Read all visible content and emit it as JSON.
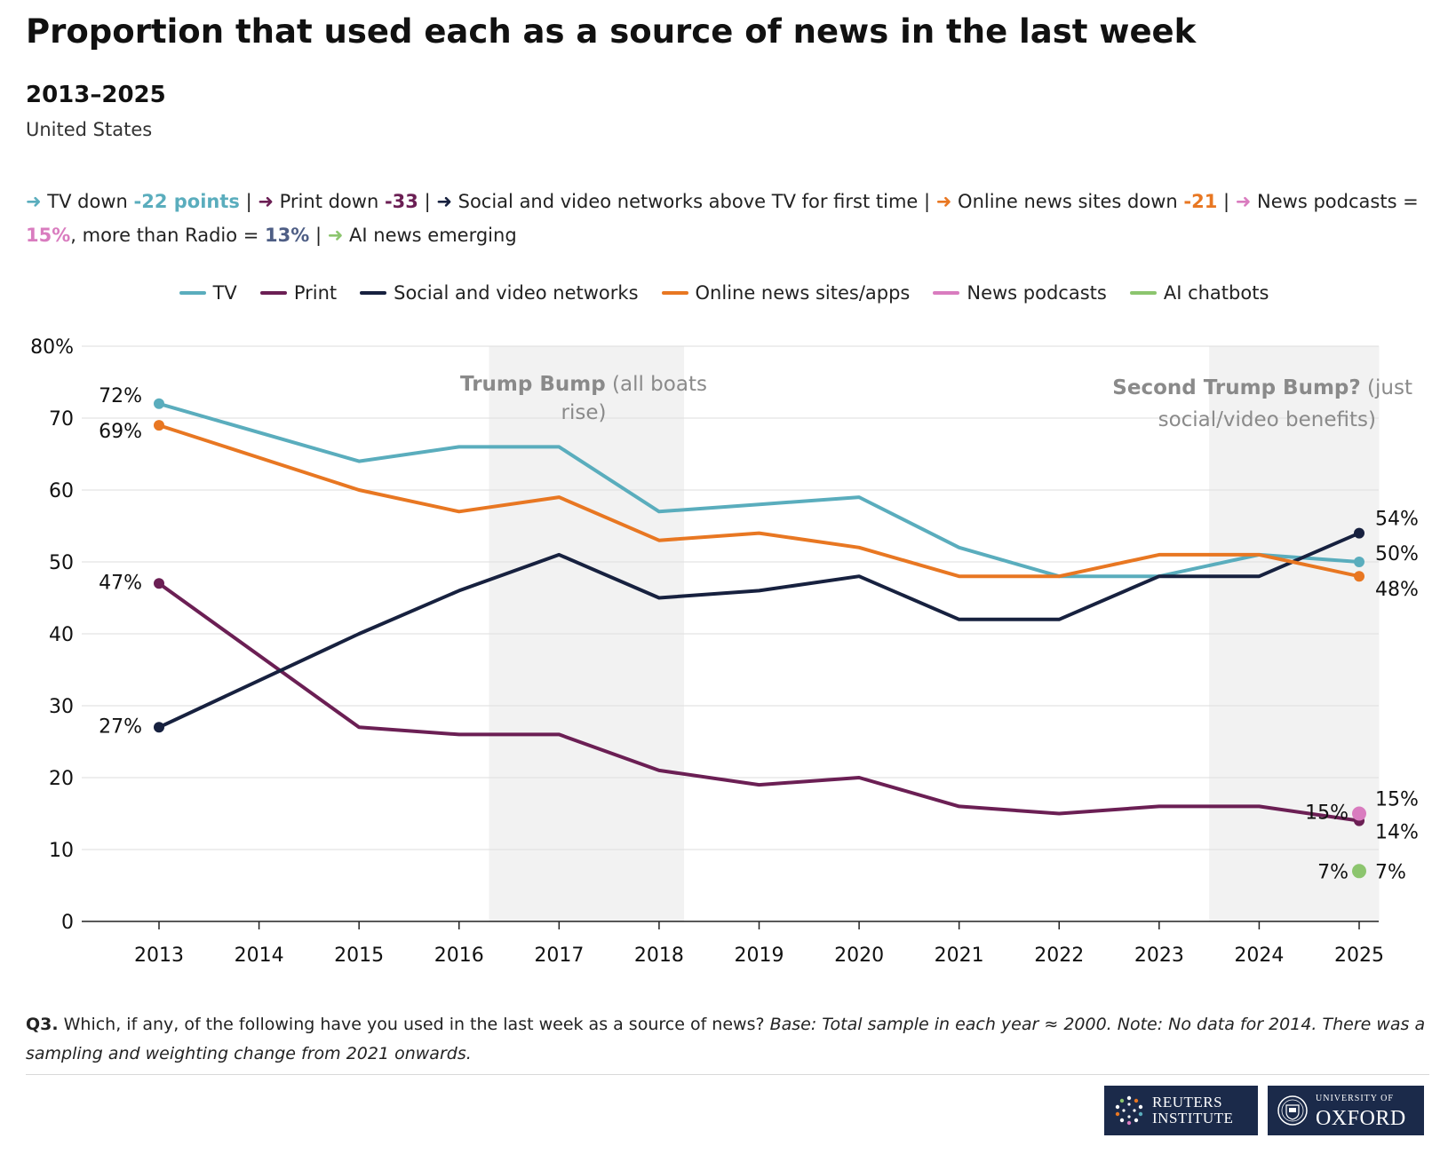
{
  "title": "Proportion that used each as a source of news in the last week",
  "subtitle": "2013–2025",
  "region": "United States",
  "summary": [
    {
      "arrow": "➜",
      "color": "#5aadbd",
      "text": " TV down ",
      "highlight": "-22 points",
      "sep": " | "
    },
    {
      "arrow": "➜",
      "color": "#6b1f54",
      "text": " Print down ",
      "highlight": "-33",
      "sep": " | "
    },
    {
      "arrow": "➜",
      "color": "#17213f",
      "text": " Social and video networks above TV for first time",
      "highlight": "",
      "sep": " | "
    },
    {
      "arrow": "➜",
      "color": "#e87722",
      "text": " Online news sites down ",
      "highlight": "-21",
      "sep": " | "
    },
    {
      "arrow": "➜",
      "color": "#d97cbf",
      "text": " News podcasts = ",
      "highlight": "15%",
      "text2": ", more than Radio = ",
      "highlight2": "13%",
      "highlight2_color": "#4e5e85",
      "sep": " | "
    },
    {
      "arrow": "➜",
      "color": "#8cc56e",
      "text": " AI news emerging",
      "highlight": "",
      "sep": ""
    }
  ],
  "chart_data": {
    "type": "line",
    "title": "Proportion that used each as a source of news in the last week",
    "subtitle": "2013–2025",
    "x": [
      2013,
      2014,
      2015,
      2016,
      2017,
      2018,
      2019,
      2020,
      2021,
      2022,
      2023,
      2024,
      2025
    ],
    "xlabels": [
      "2013",
      "2014",
      "2015",
      "2016",
      "2017",
      "2018",
      "2019",
      "2020",
      "2021",
      "2022",
      "2023",
      "2024",
      "2025"
    ],
    "ylim": [
      0,
      80
    ],
    "yticks": [
      0,
      10,
      20,
      30,
      40,
      50,
      60,
      70,
      80
    ],
    "yticklabels": [
      "0",
      "10",
      "20",
      "30",
      "40",
      "50",
      "60",
      "70",
      "80%"
    ],
    "grid": true,
    "legend_position": "top-center",
    "series": [
      {
        "name": "TV",
        "color": "#5aadbd",
        "points": [
          [
            2013,
            72
          ],
          [
            2015,
            64
          ],
          [
            2016,
            66
          ],
          [
            2017,
            66
          ],
          [
            2018,
            57
          ],
          [
            2019,
            58
          ],
          [
            2020,
            59
          ],
          [
            2021,
            52
          ],
          [
            2022,
            48
          ],
          [
            2023,
            48
          ],
          [
            2024,
            51
          ],
          [
            2025,
            50
          ]
        ],
        "start_label": "72%",
        "end_label": "50%"
      },
      {
        "name": "Print",
        "color": "#6b1f54",
        "points": [
          [
            2013,
            47
          ],
          [
            2015,
            27
          ],
          [
            2016,
            26
          ],
          [
            2017,
            26
          ],
          [
            2018,
            21
          ],
          [
            2019,
            19
          ],
          [
            2020,
            20
          ],
          [
            2021,
            16
          ],
          [
            2022,
            15
          ],
          [
            2023,
            16
          ],
          [
            2024,
            16
          ],
          [
            2025,
            14
          ]
        ],
        "start_label": "47%",
        "end_label": "14%"
      },
      {
        "name": "Social and video networks",
        "color": "#17213f",
        "points": [
          [
            2013,
            27
          ],
          [
            2015,
            40
          ],
          [
            2016,
            46
          ],
          [
            2017,
            51
          ],
          [
            2018,
            45
          ],
          [
            2019,
            46
          ],
          [
            2020,
            48
          ],
          [
            2021,
            42
          ],
          [
            2022,
            42
          ],
          [
            2023,
            48
          ],
          [
            2024,
            48
          ],
          [
            2025,
            54
          ]
        ],
        "start_label": "27%",
        "end_label": "54%"
      },
      {
        "name": "Online news sites/apps",
        "color": "#e87722",
        "points": [
          [
            2013,
            69
          ],
          [
            2015,
            60
          ],
          [
            2016,
            57
          ],
          [
            2017,
            59
          ],
          [
            2018,
            53
          ],
          [
            2019,
            54
          ],
          [
            2020,
            52
          ],
          [
            2021,
            48
          ],
          [
            2022,
            48
          ],
          [
            2023,
            51
          ],
          [
            2024,
            51
          ],
          [
            2025,
            48
          ]
        ],
        "start_label": "69%",
        "end_label": "48%"
      },
      {
        "name": "News podcasts",
        "color": "#d97cbf",
        "points": [
          [
            2025,
            15
          ]
        ],
        "start_label": "15%",
        "end_label": "15%"
      },
      {
        "name": "AI chatbots",
        "color": "#8cc56e",
        "points": [
          [
            2025,
            7
          ]
        ],
        "start_label": "7%",
        "end_label": "7%"
      }
    ],
    "shaded_periods": [
      {
        "from": 2016.3,
        "to": 2018.25,
        "label_bold": "Trump Bump",
        "label_rest": " (all boats",
        "label_line2": "rise)"
      },
      {
        "from": 2023.5,
        "to": 2025.2,
        "label_bold": "Second Trump Bump?",
        "label_rest": " (just",
        "label_line2": "social/video benefits)"
      }
    ]
  },
  "footnote": {
    "q": "Q3.",
    "text": " Which, if any, of the following have you used in the last week as a source of news? ",
    "italic": "Base: Total sample in each year ≈ 2000. Note: No data for 2014. There was a sampling and weighting change from 2021 onwards."
  },
  "logos": {
    "reuters_line1": "REUTERS",
    "reuters_line2": "INSTITUTE",
    "oxford_line1": "UNIVERSITY OF",
    "oxford_line2": "OXFORD"
  }
}
